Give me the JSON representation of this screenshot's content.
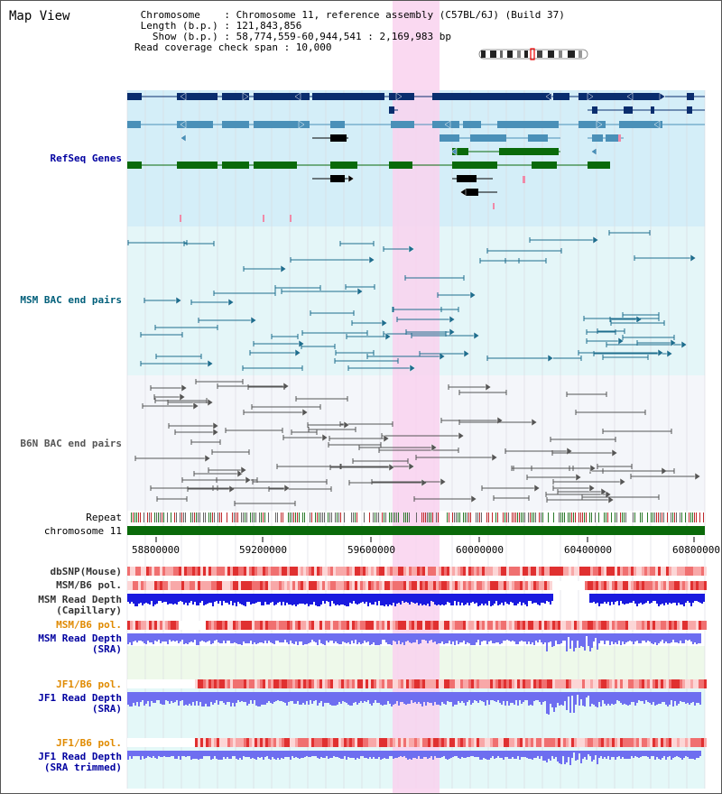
{
  "title": "Map View",
  "info": {
    "line1": " Chromosome    : Chromosome 11, reference assembly (C57BL/6J) (Build 37)",
    "line2": " Length (b.p.) : 121,843,856",
    "line3": "   Show (b.p.) : 58,774,559-60,944,541 : 2,169,983 bp",
    "line4": "Read coverage check span : 10,000"
  },
  "tracks": {
    "refseq": "RefSeq Genes",
    "msm_bac": "MSM BAC end pairs",
    "b6n_bac": "B6N BAC end pairs",
    "repeat": "Repeat",
    "chromosome": "chromosome 11",
    "dbsnp": "dbSNP(Mouse)",
    "msm_pol_cap": "MSM/B6 pol.",
    "msm_depth_cap_1": "MSM Read Depth",
    "msm_depth_cap_2": "(Capillary)",
    "msm_pol_sra": "MSM/B6 pol.",
    "msm_depth_sra_1": "MSM Read Depth",
    "msm_depth_sra_2": "(SRA)",
    "jf1_pol": "JF1/B6 pol.",
    "jf1_depth_1": "JF1 Read Depth",
    "jf1_depth_2": "(SRA)",
    "jf1_pol_trim": "JF1/B6 pol.",
    "jf1_trim_1": "JF1 Read Depth",
    "jf1_trim_2": "(SRA trimmed)"
  },
  "axis": {
    "ticks": [
      "58800000",
      "59200000",
      "59600000",
      "60000000",
      "60400000",
      "60800000"
    ]
  },
  "colors": {
    "refseq_bg": "#d4eef8",
    "bac_bg": "#e4f6f8",
    "b6n_bg": "#f4f6fa",
    "highlight": "#f9d2ef",
    "gene_dark": "#0a2d6e",
    "gene_mid": "#4a90b8",
    "gene_green": "#0a6a0a",
    "msm_bac": "#1e6e8e",
    "b6n_bac": "#555555",
    "depth_blue": "#1a1adf",
    "depth_light": "#6e6ef0",
    "label_dark": "#000000",
    "label_teal": "#005f7a",
    "label_blue": "#0000a0",
    "label_orange": "#e08a00",
    "label_navy": "#1a237e"
  }
}
